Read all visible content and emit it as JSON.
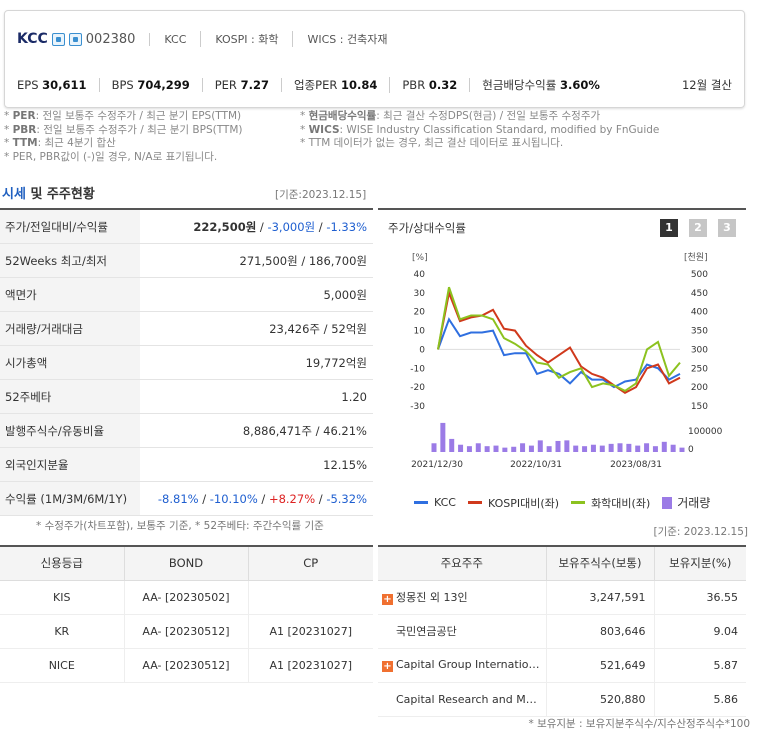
{
  "header": {
    "company": "KCC",
    "code": "002380",
    "tags": [
      "KCC",
      "KOSPI : 화학",
      "WICS : 건축자재"
    ],
    "metrics": [
      {
        "label": "EPS",
        "value": "30,611"
      },
      {
        "label": "BPS",
        "value": "704,299"
      },
      {
        "label": "PER",
        "value": "7.27"
      },
      {
        "label": "업종PER",
        "value": "10.84"
      },
      {
        "label": "PBR",
        "value": "0.32"
      },
      {
        "label": "현금배당수익률",
        "value": "3.60%"
      }
    ],
    "settlement": "12월 결산"
  },
  "notes_left": [
    {
      "key": "PER",
      "text": ": 전일 보통주 수정주가 / 최근 분기 EPS(TTM)"
    },
    {
      "key": "PBR",
      "text": ": 전일 보통주 수정주가 / 최근 분기 BPS(TTM)"
    },
    {
      "key": "TTM",
      "text": ": 최근 4분기 합산"
    },
    {
      "key": "",
      "text": "PER, PBR값이 (-)일 경우, N/A로 표기됩니다."
    }
  ],
  "notes_right": [
    {
      "key": "현금배당수익률",
      "text": ": 최근 결산 수정DPS(현금) / 전일 보통주 수정주가"
    },
    {
      "key": "WICS",
      "text": ": WISE Industry Classification Standard, modified by FnGuide"
    },
    {
      "key": "",
      "text": "TTM 데이터가 없는 경우, 최근 결산 데이터로 표시됩니다."
    }
  ],
  "section": {
    "title_a": "시세",
    "title_b": " 및 주주현황",
    "date": "[기준:2023.12.15]"
  },
  "price_table": [
    {
      "label": "주가/전일대비/수익률",
      "v1": "222,500원",
      "v2": "-3,000원",
      "v3": "-1.33%"
    },
    {
      "label": "52Weeks 최고/최저",
      "value": "271,500원 / 186,700원"
    },
    {
      "label": "액면가",
      "value": "5,000원"
    },
    {
      "label": "거래량/거래대금",
      "value": "23,426주 / 52억원"
    },
    {
      "label": "시가총액",
      "value": "19,772억원"
    },
    {
      "label": "52주베타",
      "value": "1.20"
    },
    {
      "label": "발행주식수/유동비율",
      "value": "8,886,471주 / 46.21%"
    },
    {
      "label": "외국인지분율",
      "value": "12.15%"
    },
    {
      "label": "수익률 (1M/3M/6M/1Y)",
      "r1": "-8.81%",
      "r2": "-10.10%",
      "r3": "+8.27%",
      "r4": "-5.32%"
    }
  ],
  "left_note": "* 수정주가(차트포함), 보통주 기준, * 52주베타: 주간수익률 기준",
  "chart_panel": {
    "title": "주가/상대수익률",
    "pages": [
      "1",
      "2",
      "3"
    ]
  },
  "chart_data": {
    "type": "line",
    "yleft_label": "[%]",
    "yright_label": "[천원]",
    "yleft_ticks": [
      "40",
      "30",
      "20",
      "10",
      "0",
      "-10",
      "-20",
      "-30"
    ],
    "yright_ticks": [
      "500",
      "450",
      "400",
      "350",
      "300",
      "250",
      "200",
      "150"
    ],
    "vol_tick_top": "100000",
    "vol_tick_bottom": "0",
    "x_labels": [
      "2021/12/30",
      "2022/10/31",
      "2023/08/31"
    ],
    "ylim": [
      -30,
      40
    ],
    "series": [
      {
        "name": "KCC",
        "color": "#2f6fe0",
        "values": [
          0,
          16,
          7,
          9,
          9,
          10,
          -3,
          -2,
          -2,
          -13,
          -11,
          -13,
          -18,
          -12,
          -16,
          -16,
          -20,
          -17,
          -16,
          -8,
          -10,
          -16,
          -13
        ]
      },
      {
        "name": "KOSPI대비(좌)",
        "color": "#d0391c",
        "values": [
          0,
          30,
          15,
          17,
          18,
          21,
          11,
          10,
          2,
          -3,
          -7,
          -3,
          1,
          -9,
          -13,
          -15,
          -19,
          -23,
          -20,
          -10,
          -8,
          -18,
          -15
        ]
      },
      {
        "name": "화학대비(좌)",
        "color": "#8cc21f",
        "values": [
          0,
          33,
          16,
          18,
          18,
          16,
          6,
          3,
          -1,
          -7,
          -8,
          -15,
          -12,
          -10,
          -20,
          -18,
          -19,
          -22,
          -18,
          0,
          4,
          -14,
          -7
        ]
      }
    ],
    "volume": {
      "name": "거래량",
      "color": "#9b7be6",
      "values": [
        30000,
        100000,
        45000,
        25000,
        20000,
        30000,
        20000,
        22000,
        15000,
        18000,
        30000,
        22000,
        40000,
        20000,
        38000,
        40000,
        22000,
        20000,
        25000,
        22000,
        28000,
        30000,
        28000,
        22000,
        30000,
        20000,
        35000,
        25000,
        15000
      ]
    }
  },
  "right_date": "[기준: 2023.12.15]",
  "credit": {
    "headers": [
      "신용등급",
      "BOND",
      "CP"
    ],
    "rows": [
      [
        "KIS",
        "AA-  [20230502]",
        ""
      ],
      [
        "KR",
        "AA-  [20230512]",
        "A1  [20231027]"
      ],
      [
        "NICE",
        "AA-  [20230512]",
        "A1  [20231027]"
      ]
    ]
  },
  "holders": {
    "headers": [
      "주요주주",
      "보유주식수(보통)",
      "보유지분(%)"
    ],
    "rows": [
      {
        "plus": true,
        "name": "정몽진 외 13인",
        "shares": "3,247,591",
        "pct": "36.55"
      },
      {
        "plus": false,
        "name": "국민연금공단",
        "shares": "803,646",
        "pct": "9.04"
      },
      {
        "plus": true,
        "name": "Capital Group Internation…",
        "shares": "521,649",
        "pct": "5.87"
      },
      {
        "plus": false,
        "name": "Capital Research and M…",
        "shares": "520,880",
        "pct": "5.86"
      }
    ]
  },
  "foot_note": "* 보유지분 : 보유지분주식수/지수산정주식수*100"
}
